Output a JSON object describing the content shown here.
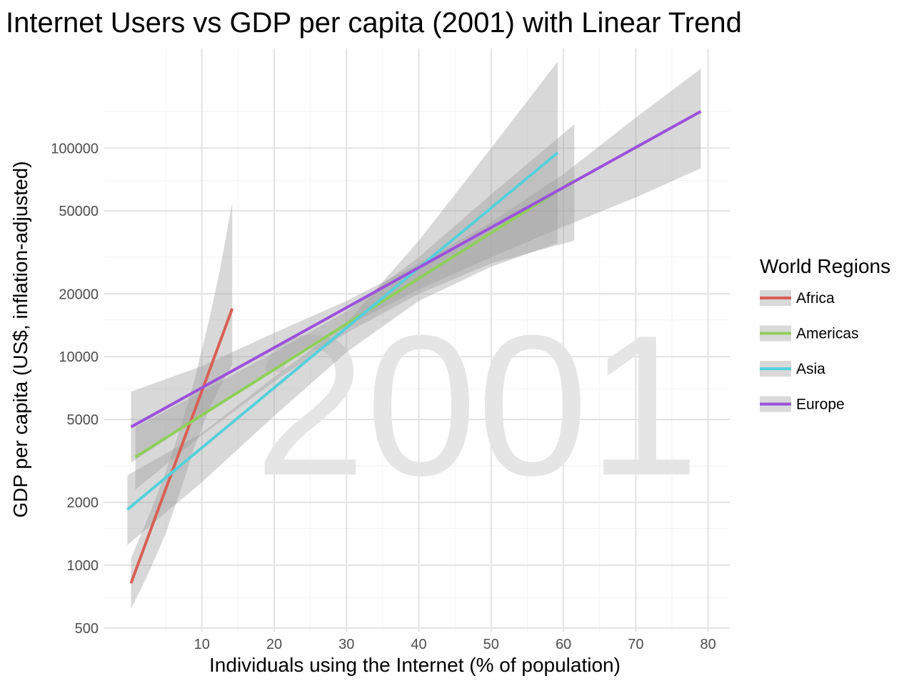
{
  "chart_data": {
    "type": "line",
    "title": "Internet Users vs GDP per capita (2001) with Linear Trend",
    "xlabel": "Individuals using the Internet (% of population)",
    "ylabel": "GDP per capita (US$, inflation-adjusted)",
    "watermark": "2001",
    "x_scale": "linear",
    "y_scale": "log",
    "xlim": [
      -3.5,
      83
    ],
    "ylim": [
      480,
      300000
    ],
    "x_ticks": [
      10,
      20,
      30,
      40,
      50,
      60,
      70,
      80
    ],
    "y_ticks": [
      500,
      1000,
      2000,
      5000,
      10000,
      20000,
      50000,
      100000
    ],
    "grid": true,
    "legend": {
      "title": "World Regions",
      "position": "right"
    },
    "series": [
      {
        "name": "Africa",
        "color": "#d95f55",
        "x": [
          0.2,
          14.2
        ],
        "y": [
          820,
          17000
        ],
        "band": {
          "x": [
            0.2,
            1.5,
            3,
            5,
            7,
            9,
            11,
            12.5,
            14.2
          ],
          "lower": [
            620,
            760,
            980,
            1420,
            2250,
            3700,
            5600,
            7200,
            9100
          ],
          "upper": [
            1080,
            1380,
            1850,
            2800,
            4500,
            7800,
            15000,
            26000,
            55000
          ]
        }
      },
      {
        "name": "Americas",
        "color": "#8fcf5a",
        "x": [
          0.8,
          61.5
        ],
        "y": [
          3300,
          70000
        ],
        "band": {
          "x": [
            0.8,
            10,
            20,
            30,
            40,
            50,
            61.5
          ],
          "lower": [
            2300,
            4200,
            7600,
            13000,
            20000,
            28000,
            36000
          ],
          "upper": [
            4600,
            6800,
            10500,
            16500,
            30000,
            60000,
            130000
          ]
        }
      },
      {
        "name": "Asia",
        "color": "#55d0dc",
        "x": [
          -0.3,
          59.2
        ],
        "y": [
          1850,
          95000
        ],
        "band": {
          "x": [
            -0.3,
            10,
            20,
            30,
            40,
            50,
            59.2
          ],
          "lower": [
            1250,
            2500,
            5200,
            10500,
            18500,
            27000,
            35000
          ],
          "upper": [
            2700,
            4300,
            8000,
            14500,
            36000,
            100000,
            260000
          ]
        }
      },
      {
        "name": "Europe",
        "color": "#9b51dc",
        "x": [
          0.2,
          79
        ],
        "y": [
          4600,
          150000
        ],
        "band": {
          "x": [
            0.2,
            10,
            20,
            30,
            40,
            50,
            60,
            70,
            79
          ],
          "lower": [
            3100,
            5200,
            8800,
            14000,
            21000,
            30000,
            42000,
            58000,
            80000
          ],
          "upper": [
            6800,
            9000,
            13000,
            18500,
            28000,
            44000,
            75000,
            140000,
            240000
          ]
        }
      }
    ]
  }
}
